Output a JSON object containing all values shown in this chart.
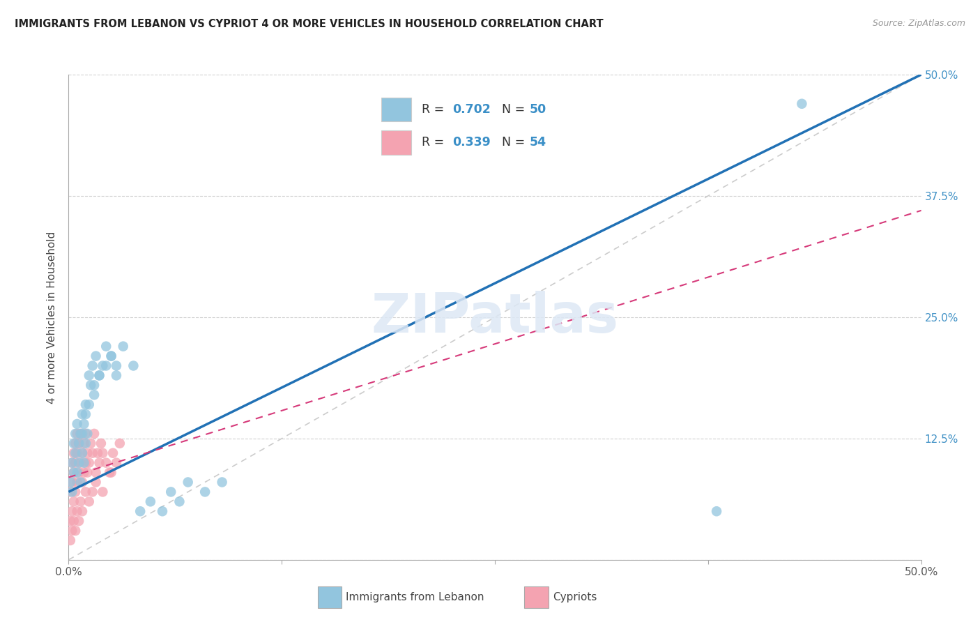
{
  "title": "IMMIGRANTS FROM LEBANON VS CYPRIOT 4 OR MORE VEHICLES IN HOUSEHOLD CORRELATION CHART",
  "source": "Source: ZipAtlas.com",
  "ylabel": "4 or more Vehicles in Household",
  "xlim": [
    0,
    0.5
  ],
  "ylim": [
    0,
    0.5
  ],
  "legend_R1": "0.702",
  "legend_N1": "50",
  "legend_R2": "0.339",
  "legend_N2": "54",
  "color_lebanon": "#92c5de",
  "color_cypriot": "#f4a3b1",
  "color_regression_lebanon": "#2171b5",
  "color_regression_cypriot": "#d63a7a",
  "watermark": "ZIPatlas",
  "lebanon_x": [
    0.001,
    0.002,
    0.002,
    0.003,
    0.003,
    0.004,
    0.004,
    0.005,
    0.005,
    0.006,
    0.006,
    0.007,
    0.007,
    0.008,
    0.008,
    0.009,
    0.009,
    0.01,
    0.01,
    0.011,
    0.012,
    0.013,
    0.014,
    0.015,
    0.016,
    0.018,
    0.02,
    0.022,
    0.025,
    0.028,
    0.008,
    0.01,
    0.012,
    0.015,
    0.018,
    0.022,
    0.025,
    0.028,
    0.032,
    0.038,
    0.042,
    0.048,
    0.055,
    0.06,
    0.065,
    0.07,
    0.08,
    0.09,
    0.38,
    0.43
  ],
  "lebanon_y": [
    0.08,
    0.07,
    0.1,
    0.09,
    0.12,
    0.11,
    0.13,
    0.09,
    0.14,
    0.1,
    0.12,
    0.08,
    0.13,
    0.11,
    0.15,
    0.1,
    0.14,
    0.12,
    0.16,
    0.13,
    0.19,
    0.18,
    0.2,
    0.17,
    0.21,
    0.19,
    0.2,
    0.22,
    0.21,
    0.2,
    0.13,
    0.15,
    0.16,
    0.18,
    0.19,
    0.2,
    0.21,
    0.19,
    0.22,
    0.2,
    0.05,
    0.06,
    0.05,
    0.07,
    0.06,
    0.08,
    0.07,
    0.08,
    0.05,
    0.47
  ],
  "cypriot_x": [
    0.001,
    0.001,
    0.002,
    0.002,
    0.002,
    0.003,
    0.003,
    0.003,
    0.004,
    0.004,
    0.004,
    0.005,
    0.005,
    0.005,
    0.006,
    0.006,
    0.007,
    0.007,
    0.008,
    0.008,
    0.009,
    0.009,
    0.01,
    0.01,
    0.011,
    0.011,
    0.012,
    0.013,
    0.014,
    0.015,
    0.016,
    0.017,
    0.018,
    0.019,
    0.02,
    0.022,
    0.024,
    0.026,
    0.028,
    0.03,
    0.001,
    0.002,
    0.003,
    0.004,
    0.005,
    0.006,
    0.007,
    0.008,
    0.01,
    0.012,
    0.014,
    0.016,
    0.02,
    0.025
  ],
  "cypriot_y": [
    0.04,
    0.07,
    0.05,
    0.08,
    0.1,
    0.06,
    0.09,
    0.11,
    0.07,
    0.1,
    0.12,
    0.08,
    0.11,
    0.13,
    0.09,
    0.12,
    0.1,
    0.13,
    0.08,
    0.11,
    0.09,
    0.12,
    0.1,
    0.13,
    0.09,
    0.11,
    0.1,
    0.12,
    0.11,
    0.13,
    0.09,
    0.11,
    0.1,
    0.12,
    0.11,
    0.1,
    0.09,
    0.11,
    0.1,
    0.12,
    0.02,
    0.03,
    0.04,
    0.03,
    0.05,
    0.04,
    0.06,
    0.05,
    0.07,
    0.06,
    0.07,
    0.08,
    0.07,
    0.09
  ],
  "leb_slope": 0.86,
  "leb_intercept": 0.07,
  "cyp_slope": 0.55,
  "cyp_intercept": 0.085
}
